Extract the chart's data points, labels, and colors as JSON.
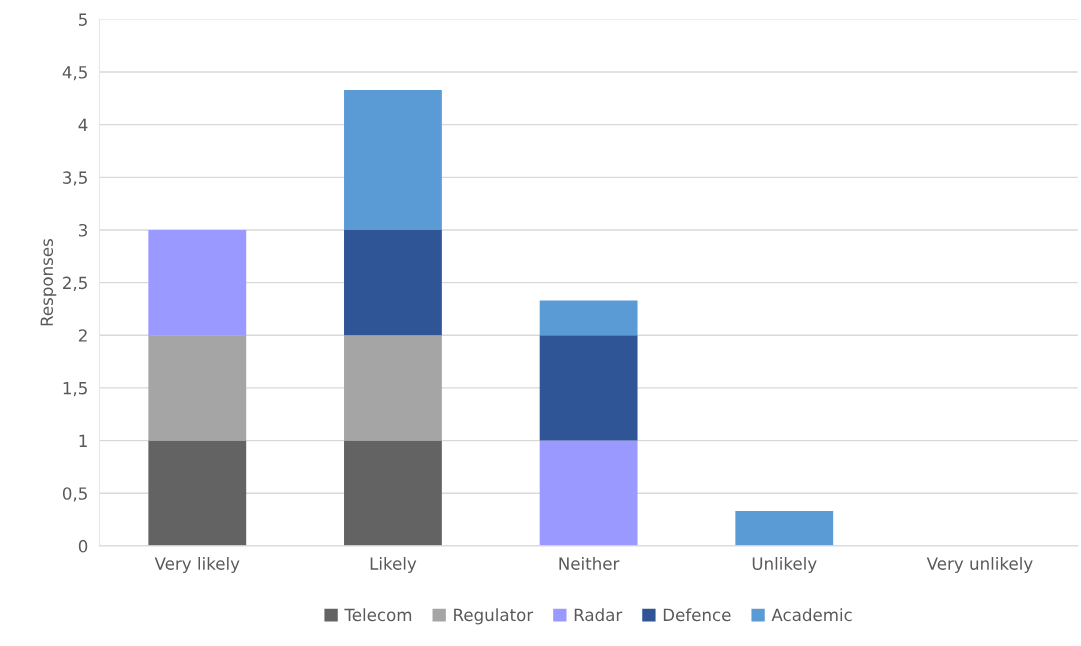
{
  "chart_data": {
    "type": "bar",
    "stacked": true,
    "ylabel": "Responses",
    "categories": [
      "Very likely",
      "Likely",
      "Neither",
      "Unlikely",
      "Very unlikely"
    ],
    "series": [
      {
        "name": "Telecom",
        "color": "#636363",
        "values": [
          1,
          1,
          0,
          0,
          0
        ]
      },
      {
        "name": "Regulator",
        "color": "#a5a5a5",
        "values": [
          1,
          1,
          0,
          0,
          0
        ]
      },
      {
        "name": "Radar",
        "color": "#9999ff",
        "values": [
          1,
          0,
          1,
          0,
          0
        ]
      },
      {
        "name": "Defence",
        "color": "#2f5597",
        "values": [
          0,
          1,
          1,
          0,
          0
        ]
      },
      {
        "name": "Academic",
        "color": "#5b9bd5",
        "values": [
          0,
          1.33,
          0.33,
          0.33,
          0
        ]
      }
    ],
    "ylim": [
      0,
      5
    ],
    "yticks": [
      0,
      {
        "value": 0.5,
        "label": "0,5"
      },
      1,
      {
        "value": 1.5,
        "label": "1,5"
      },
      2,
      {
        "value": 2.5,
        "label": "2,5"
      },
      3,
      {
        "value": 3.5,
        "label": "3,5"
      },
      4,
      {
        "value": 4.5,
        "label": "4,5"
      },
      5
    ],
    "grid": "y",
    "legend": "bottom"
  }
}
